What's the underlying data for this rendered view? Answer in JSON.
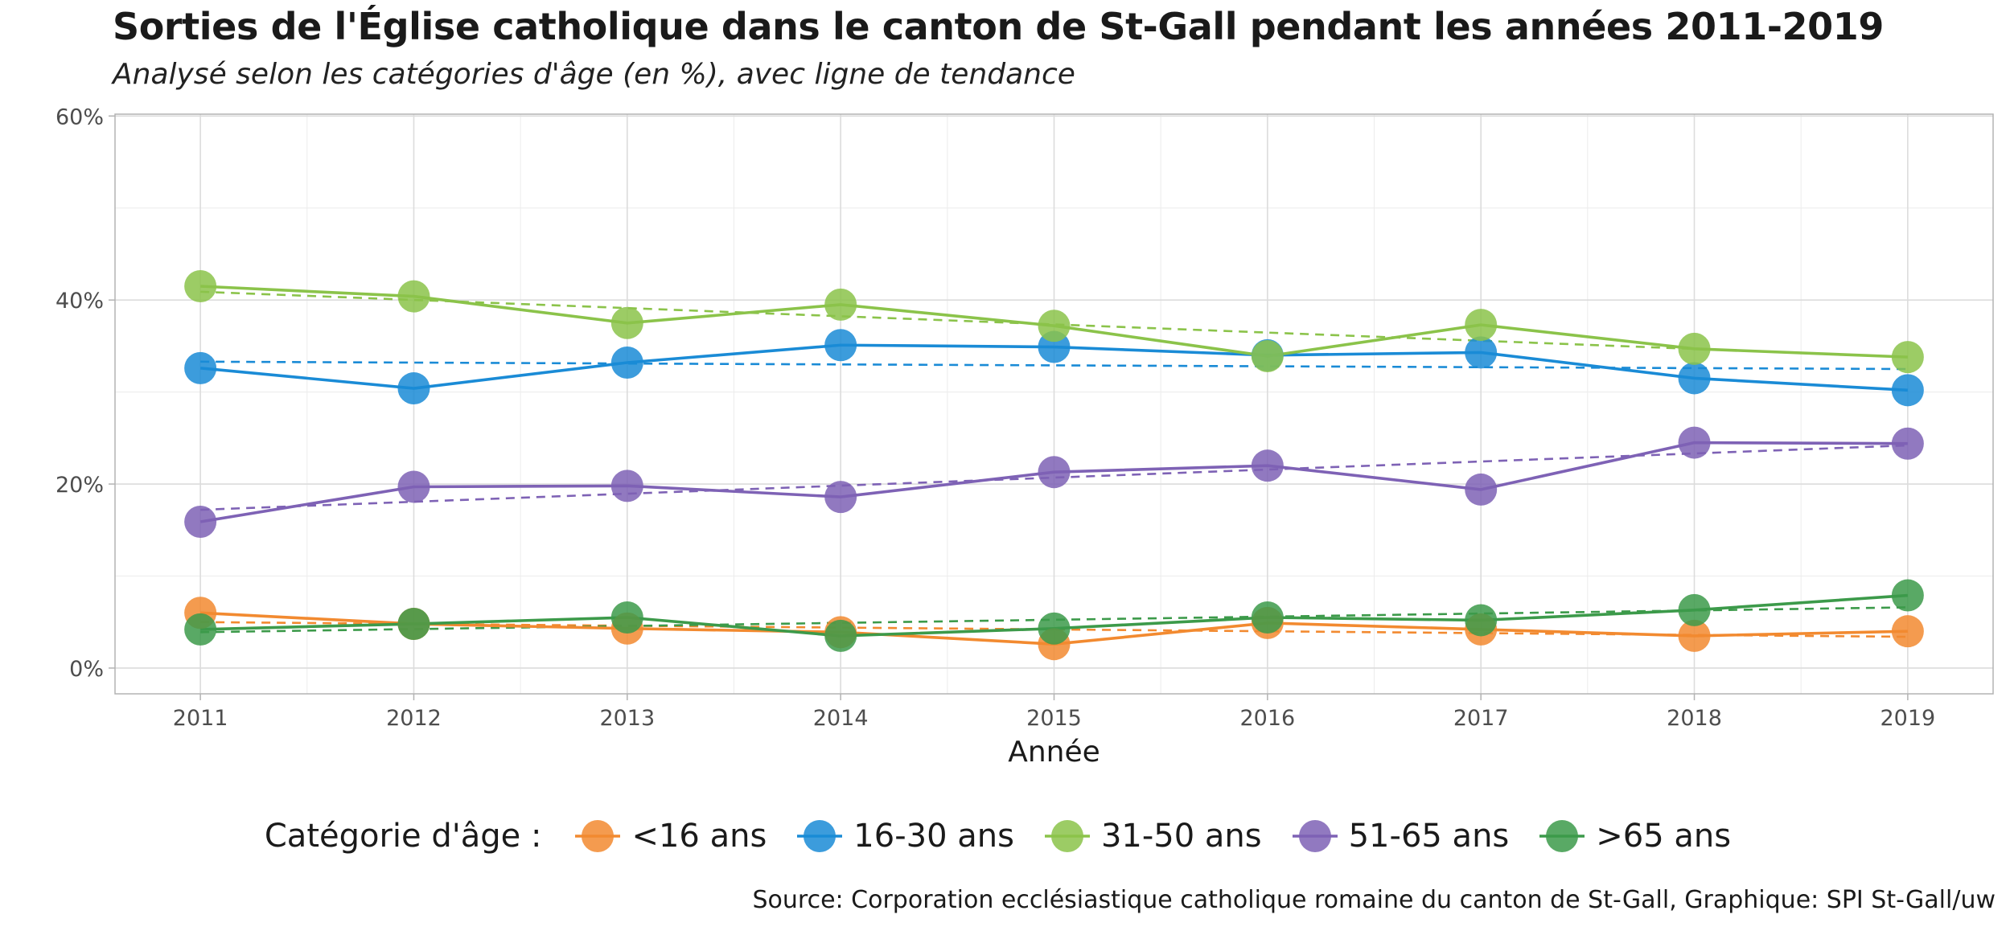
{
  "title": "Sorties de l'Église catholique dans le canton de St-Gall pendant les années 2011-2019",
  "subtitle": "Analysé selon les catégories d'âge (en %), avec ligne de tendance",
  "caption": "Source: Corporation ecclésiastique catholique romaine du canton de St-Gall, Graphique: SPI St-Gall/uw",
  "chart_data": {
    "type": "line",
    "xlabel": "Année",
    "ylabel": "",
    "x": [
      2011,
      2012,
      2013,
      2014,
      2015,
      2016,
      2017,
      2018,
      2019
    ],
    "ylim": [
      -2.8,
      60.2
    ],
    "yticks": [
      0,
      20,
      40,
      60
    ],
    "ytick_labels": [
      "0%",
      "20%",
      "40%",
      "60%"
    ],
    "grid": true,
    "legend_position": "bottom",
    "legend_title": "Catégorie d'âge :",
    "trend_lines": "dashed linear trend per series",
    "series": [
      {
        "name": "<16 ans",
        "color": "#F28A30",
        "values": [
          6.0,
          4.8,
          4.3,
          3.9,
          2.6,
          4.9,
          4.2,
          3.5,
          4.0
        ],
        "trend": [
          5.0,
          3.4
        ]
      },
      {
        "name": "16-30 ans",
        "color": "#1A8BD6",
        "values": [
          32.6,
          30.4,
          33.2,
          35.1,
          34.9,
          34.0,
          34.3,
          31.5,
          30.2
        ],
        "trend": [
          33.3,
          32.5
        ]
      },
      {
        "name": "31-50 ans",
        "color": "#8BC34A",
        "values": [
          41.5,
          40.4,
          37.5,
          39.5,
          37.2,
          33.9,
          37.3,
          34.7,
          33.8
        ],
        "trend": [
          40.9,
          33.8
        ]
      },
      {
        "name": "51-65 ans",
        "color": "#7E62B5",
        "values": [
          15.9,
          19.7,
          19.8,
          18.6,
          21.3,
          22.0,
          19.4,
          24.5,
          24.4
        ],
        "trend": [
          17.2,
          24.2
        ]
      },
      {
        "name": ">65 ans",
        "color": "#3C9A4A",
        "values": [
          4.2,
          4.8,
          5.5,
          3.5,
          4.3,
          5.5,
          5.2,
          6.3,
          7.9
        ],
        "trend": [
          3.9,
          6.6
        ]
      }
    ]
  }
}
